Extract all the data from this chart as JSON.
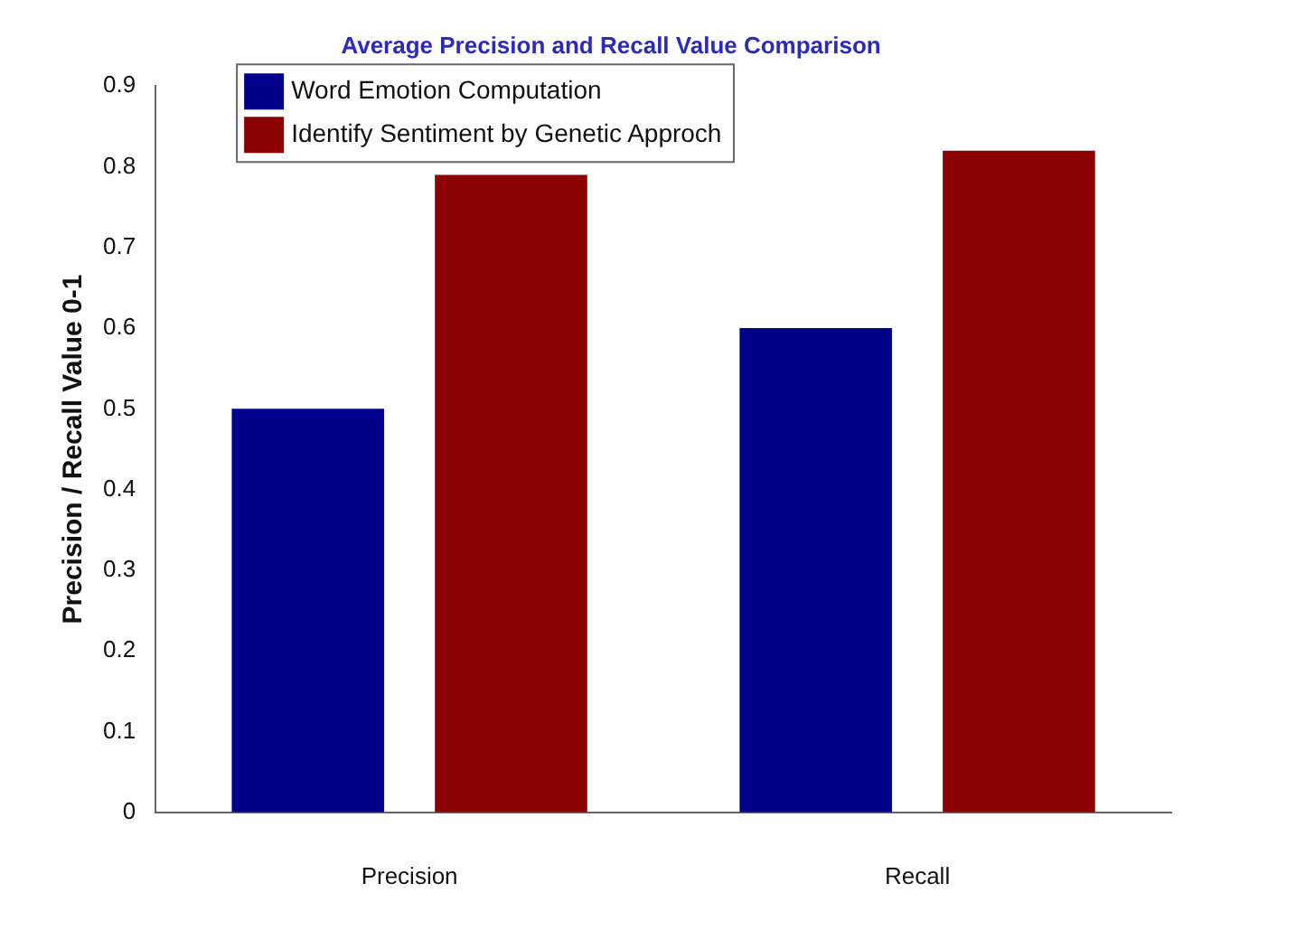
{
  "chart_data": {
    "type": "bar",
    "title": "Average Precision and Recall Value Comparison",
    "ylabel": "Precision / Recall Value 0-1",
    "categories": [
      "Precision",
      "Recall"
    ],
    "series": [
      {
        "name": "Word Emotion Computation",
        "color": "#00008b",
        "values": [
          0.5,
          0.6
        ]
      },
      {
        "name": "Identify Sentiment by Genetic Approch",
        "color": "#8b0000",
        "values": [
          0.79,
          0.82
        ]
      }
    ],
    "ylim": [
      0,
      0.9
    ],
    "yticks": [
      0,
      0.1,
      0.2,
      0.3,
      0.4,
      0.5,
      0.6,
      0.7,
      0.8,
      0.9
    ],
    "grid": false,
    "legend": "top left"
  }
}
